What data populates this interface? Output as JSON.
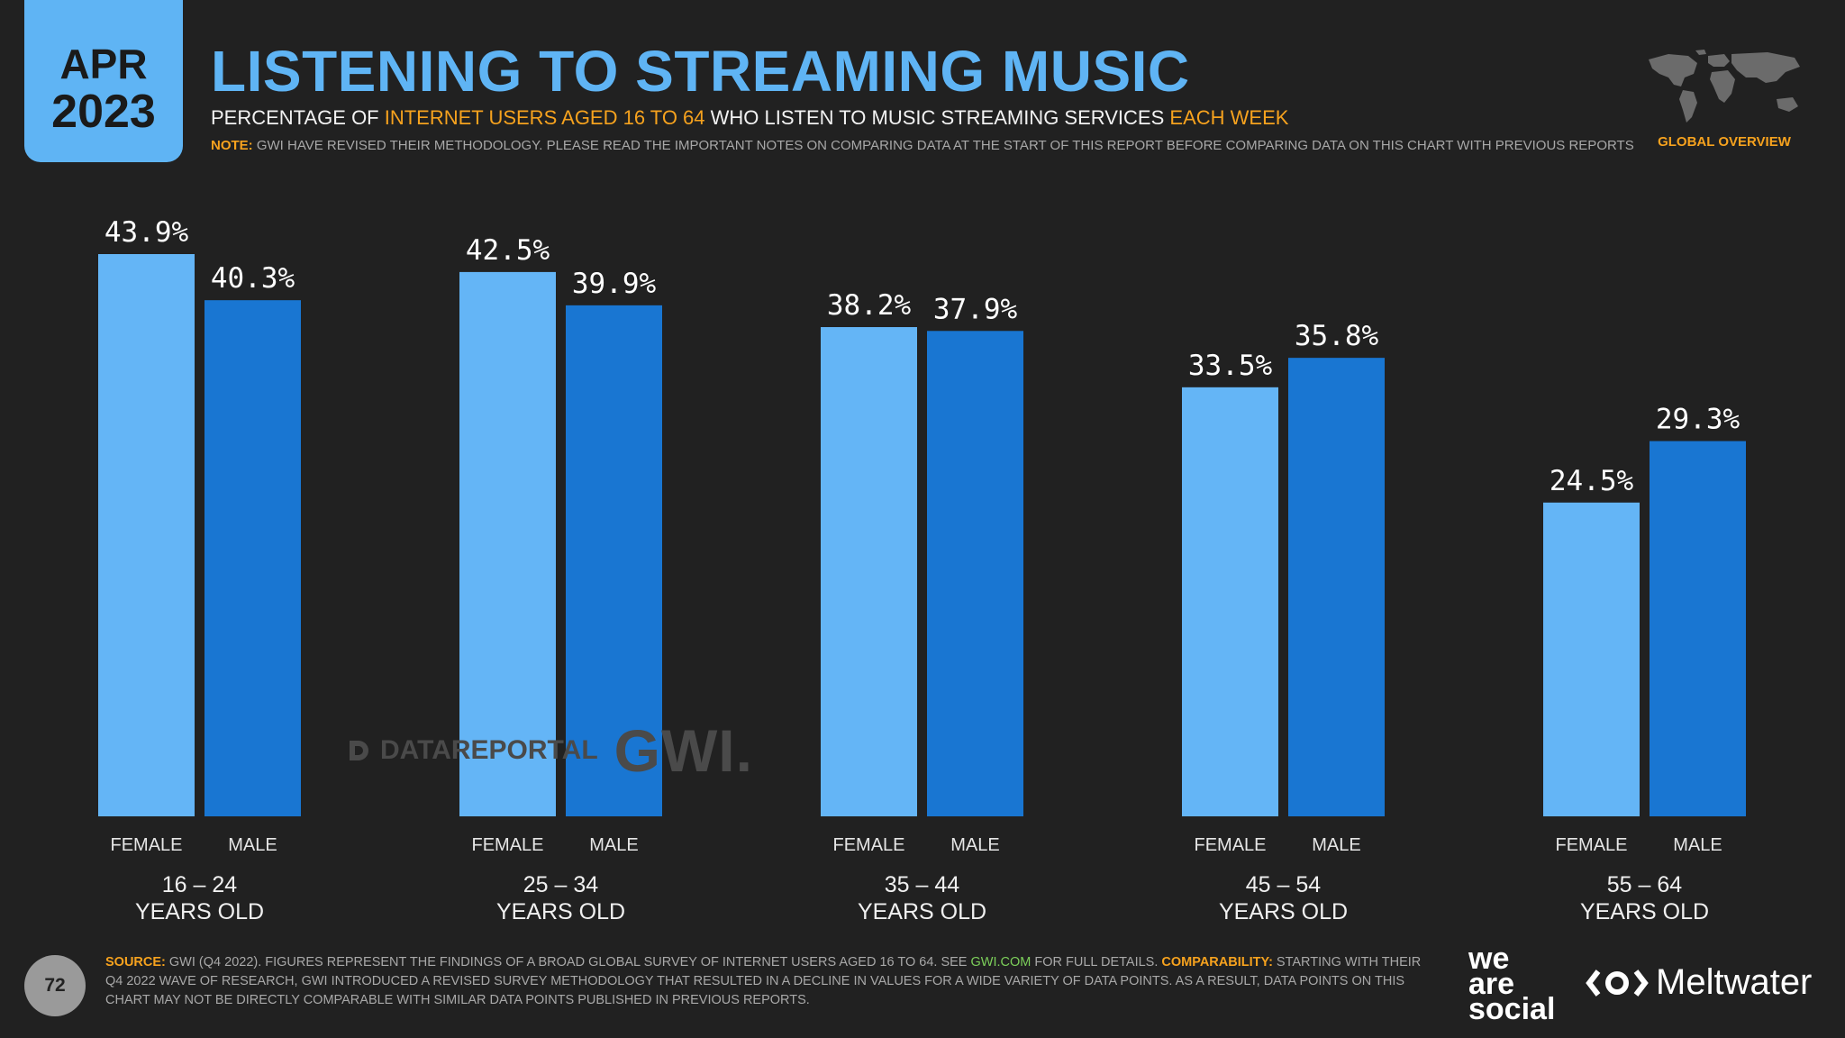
{
  "header": {
    "month": "APR",
    "year": "2023",
    "title": "LISTENING TO STREAMING MUSIC",
    "subtitle_part1": "PERCENTAGE OF ",
    "subtitle_hl1": "INTERNET USERS AGED 16 TO 64",
    "subtitle_part2": " WHO LISTEN TO MUSIC STREAMING SERVICES ",
    "subtitle_hl2": "EACH WEEK",
    "note_label": "NOTE:",
    "note_text": " GWI HAVE REVISED THEIR METHODOLOGY. PLEASE READ THE IMPORTANT NOTES ON COMPARING DATA AT THE START OF THIS REPORT BEFORE COMPARING DATA ON THIS CHART WITH PREVIOUS REPORTS",
    "region_label": "GLOBAL OVERVIEW"
  },
  "chart_data": {
    "type": "bar",
    "title": "LISTENING TO STREAMING MUSIC",
    "categories": [
      "16 – 24|YEARS OLD",
      "25 – 34|YEARS OLD",
      "35 – 44|YEARS OLD",
      "45 – 54|YEARS OLD",
      "55 – 64|YEARS OLD"
    ],
    "series": [
      {
        "name": "FEMALE",
        "color": "#64b5f6",
        "values": [
          43.9,
          42.5,
          38.2,
          33.5,
          24.5
        ]
      },
      {
        "name": "MALE",
        "color": "#1976d2",
        "values": [
          40.3,
          39.9,
          37.9,
          35.8,
          29.3
        ]
      }
    ],
    "value_suffix": "%",
    "ylim": [
      0,
      43.9
    ],
    "grid": false
  },
  "watermark": {
    "datareportal": "DATAREPORTAL",
    "gwi": "GWI."
  },
  "footer": {
    "page_number": "72",
    "source_label": "SOURCE:",
    "source_text1": " GWI (Q4 2022). FIGURES REPRESENT THE FINDINGS OF A BROAD GLOBAL SURVEY OF INTERNET USERS AGED 16 TO 64. SEE ",
    "source_link": "GWI.COM",
    "source_text2": " FOR FULL DETAILS. ",
    "comparability_label": "COMPARABILITY:",
    "comparability_text": " STARTING WITH THEIR Q4 2022 WAVE OF RESEARCH, GWI INTRODUCED A REVISED SURVEY METHODOLOGY THAT RESULTED IN A DECLINE IN VALUES FOR A WIDE VARIETY OF DATA POINTS. AS A RESULT, DATA POINTS ON THIS CHART MAY NOT BE DIRECTLY COMPARABLE WITH SIMILAR DATA POINTS PUBLISHED IN PREVIOUS REPORTS.",
    "brand1_line1": "we",
    "brand1_line2": "are",
    "brand1_line3": "social",
    "brand2": "Meltwater"
  },
  "colors": {
    "accent": "#5fb4f4",
    "highlight": "#f6a21e",
    "female": "#64b5f6",
    "male": "#1976d2"
  }
}
